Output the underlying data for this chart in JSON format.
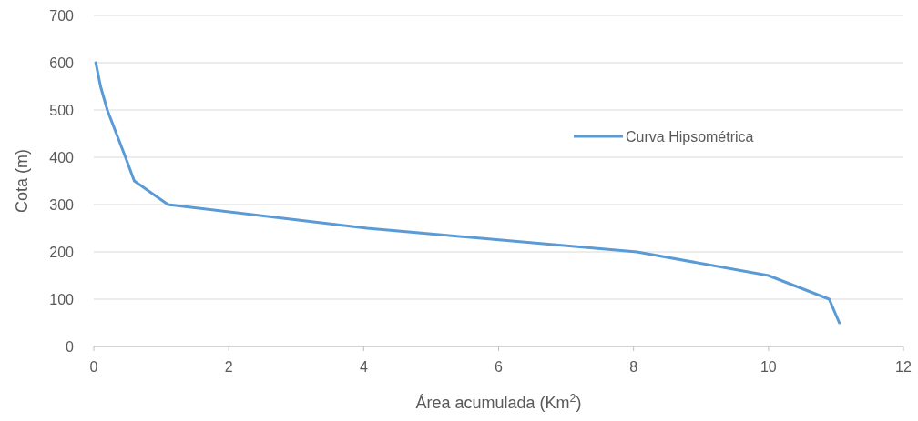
{
  "chart_data": {
    "type": "line",
    "xlabel": "Área acumulada (Km$^{2}$)",
    "ylabel": "Cota (m)",
    "series": [
      {
        "name": "Curva Hipsométrica",
        "color": "#5b9bd5",
        "x": [
          0.03,
          0.1,
          0.2,
          0.47,
          0.6,
          1.1,
          4.05,
          8.05,
          10.0,
          10.9,
          11.05
        ],
        "values": [
          600,
          550,
          500,
          400,
          350,
          300,
          250,
          200,
          150,
          100,
          50
        ]
      }
    ],
    "xlim": [
      0,
      12
    ],
    "xticks": [
      0,
      2,
      4,
      6,
      8,
      10,
      12
    ],
    "ylim": [
      0,
      700
    ],
    "yticks": [
      0,
      100,
      200,
      300,
      400,
      500,
      600,
      700
    ],
    "grid": "y",
    "legend": "right",
    "marker": "none",
    "line_style": "solid"
  }
}
